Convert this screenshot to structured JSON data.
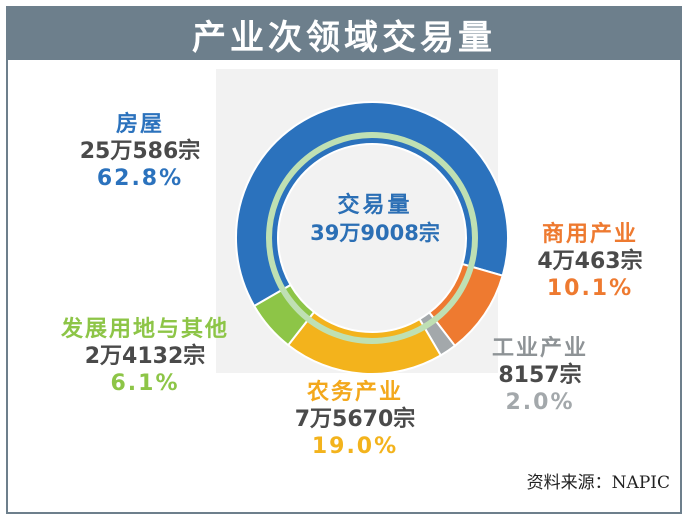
{
  "header": {
    "title": "产业次领域交易量"
  },
  "center": {
    "label": "交易量",
    "total": "39万9008宗"
  },
  "source": "资料来源：NAPIC",
  "chart_data": {
    "type": "pie",
    "donut": true,
    "categories": [
      "房屋",
      "商用产业",
      "工业产业",
      "农务产业",
      "发展用地与其他"
    ],
    "counts": [
      "25万586宗",
      "4万463宗",
      "8157宗",
      "7万5670宗",
      "2万4132宗"
    ],
    "percent_labels": [
      "62.8%",
      "10.1%",
      "2.0%",
      "19.0%",
      "6.1%"
    ],
    "values": [
      62.8,
      10.1,
      2.0,
      19.0,
      6.1
    ],
    "colors": [
      "#2b72bd",
      "#ee7a30",
      "#a3a8ab",
      "#f3b31c",
      "#8dc547"
    ]
  }
}
